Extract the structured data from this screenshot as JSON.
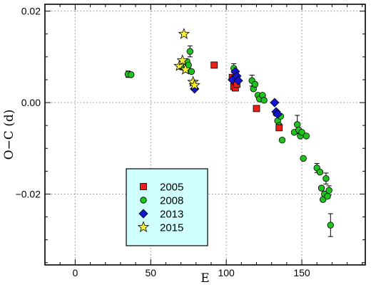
{
  "chart_data": {
    "type": "scatter",
    "xlabel": "E",
    "ylabel": "O−C (d)",
    "xlim": [
      -20,
      192
    ],
    "ylim": [
      -0.0355,
      0.0215
    ],
    "xticks": [
      0,
      50,
      100,
      150
    ],
    "xtick_labels": [
      "0",
      "50",
      "100",
      "150"
    ],
    "yticks": [
      -0.02,
      0.0,
      0.02
    ],
    "ytick_labels": [
      "−0.02",
      "0.00",
      "0.02"
    ],
    "grid": true,
    "legend_position": "bottom-left",
    "series": [
      {
        "name": "2005",
        "marker": "square",
        "color": "#e8201a",
        "points": [
          {
            "x": 92,
            "y": 0.0082
          },
          {
            "x": 104,
            "y": 0.0055
          },
          {
            "x": 105,
            "y": 0.0035
          },
          {
            "x": 106,
            "y": 0.0032
          },
          {
            "x": 107,
            "y": 0.004
          },
          {
            "x": 120,
            "y": -0.0013
          },
          {
            "x": 135,
            "y": -0.0055
          }
        ]
      },
      {
        "name": "2008",
        "marker": "circle",
        "color": "#1fc21f",
        "points": [
          {
            "x": 35,
            "y": 0.0062,
            "err": 0.0007
          },
          {
            "x": 37,
            "y": 0.0061
          },
          {
            "x": 70,
            "y": 0.0078
          },
          {
            "x": 74,
            "y": 0.009
          },
          {
            "x": 75,
            "y": 0.0082
          },
          {
            "x": 76,
            "y": 0.0112,
            "err": 0.0012
          },
          {
            "x": 77,
            "y": 0.0068
          },
          {
            "x": 105,
            "y": 0.0075,
            "err": 0.001
          },
          {
            "x": 106,
            "y": 0.0058
          },
          {
            "x": 107,
            "y": 0.0052
          },
          {
            "x": 117,
            "y": 0.0048,
            "err": 0.0012
          },
          {
            "x": 118,
            "y": 0.003
          },
          {
            "x": 119,
            "y": 0.004
          },
          {
            "x": 121,
            "y": 0.0016
          },
          {
            "x": 122,
            "y": 0.0008
          },
          {
            "x": 124,
            "y": 0.0016
          },
          {
            "x": 125,
            "y": 0.0005
          },
          {
            "x": 133,
            "y": -0.0024
          },
          {
            "x": 134,
            "y": -0.004
          },
          {
            "x": 135,
            "y": -0.005
          },
          {
            "x": 136,
            "y": -0.003
          },
          {
            "x": 137,
            "y": -0.0082
          },
          {
            "x": 145,
            "y": -0.0065
          },
          {
            "x": 147,
            "y": -0.0048,
            "err": 0.002
          },
          {
            "x": 148,
            "y": -0.006
          },
          {
            "x": 149,
            "y": -0.0073
          },
          {
            "x": 150,
            "y": -0.0065
          },
          {
            "x": 151,
            "y": -0.0122
          },
          {
            "x": 153,
            "y": -0.0073
          },
          {
            "x": 160,
            "y": -0.0143,
            "err": 0.001
          },
          {
            "x": 162,
            "y": -0.0152
          },
          {
            "x": 163,
            "y": -0.0187
          },
          {
            "x": 164,
            "y": -0.0212
          },
          {
            "x": 165,
            "y": -0.02
          },
          {
            "x": 166,
            "y": -0.0166,
            "err": 0.0012
          },
          {
            "x": 167,
            "y": -0.0205
          },
          {
            "x": 168,
            "y": -0.0192,
            "err": 0.001
          },
          {
            "x": 169,
            "y": -0.0268,
            "err": 0.0025
          }
        ]
      },
      {
        "name": "2013",
        "marker": "diamond",
        "color": "#1515d0",
        "points": [
          {
            "x": 79,
            "y": 0.003
          },
          {
            "x": 104,
            "y": 0.005
          },
          {
            "x": 106,
            "y": 0.0068
          },
          {
            "x": 107,
            "y": 0.0058
          },
          {
            "x": 108,
            "y": 0.0048
          },
          {
            "x": 132,
            "y": 0.0
          },
          {
            "x": 133,
            "y": -0.002
          },
          {
            "x": 134,
            "y": -0.0025
          }
        ]
      },
      {
        "name": "2015",
        "marker": "star",
        "color": "#f4ef36",
        "points": [
          {
            "x": 69,
            "y": 0.008
          },
          {
            "x": 71,
            "y": 0.0092
          },
          {
            "x": 72,
            "y": 0.015
          },
          {
            "x": 73,
            "y": 0.0072
          },
          {
            "x": 78,
            "y": 0.0045
          },
          {
            "x": 79,
            "y": 0.0038
          }
        ]
      }
    ]
  }
}
